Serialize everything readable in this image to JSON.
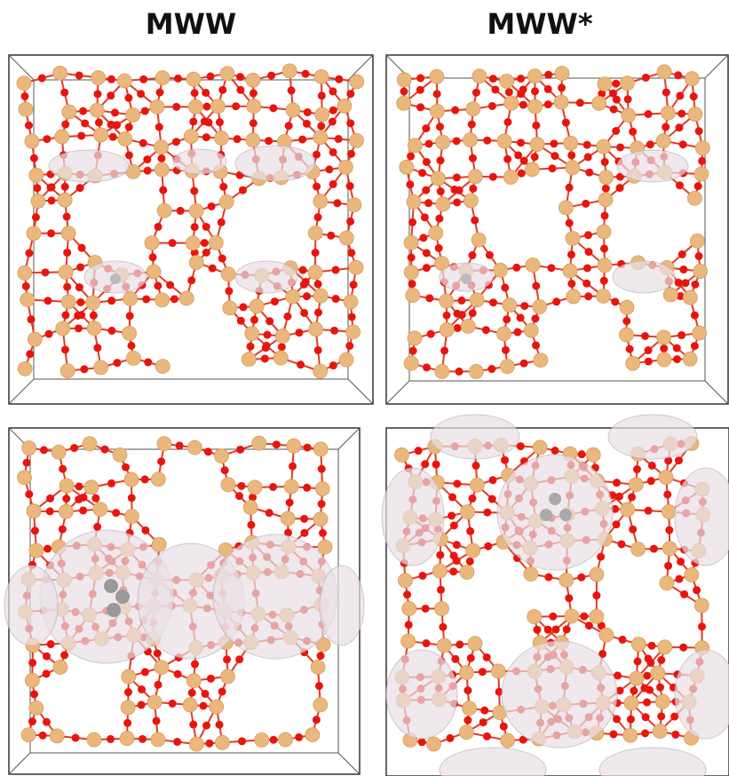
{
  "header": {
    "titles": [
      "MWW",
      "MWW*"
    ]
  }
}
